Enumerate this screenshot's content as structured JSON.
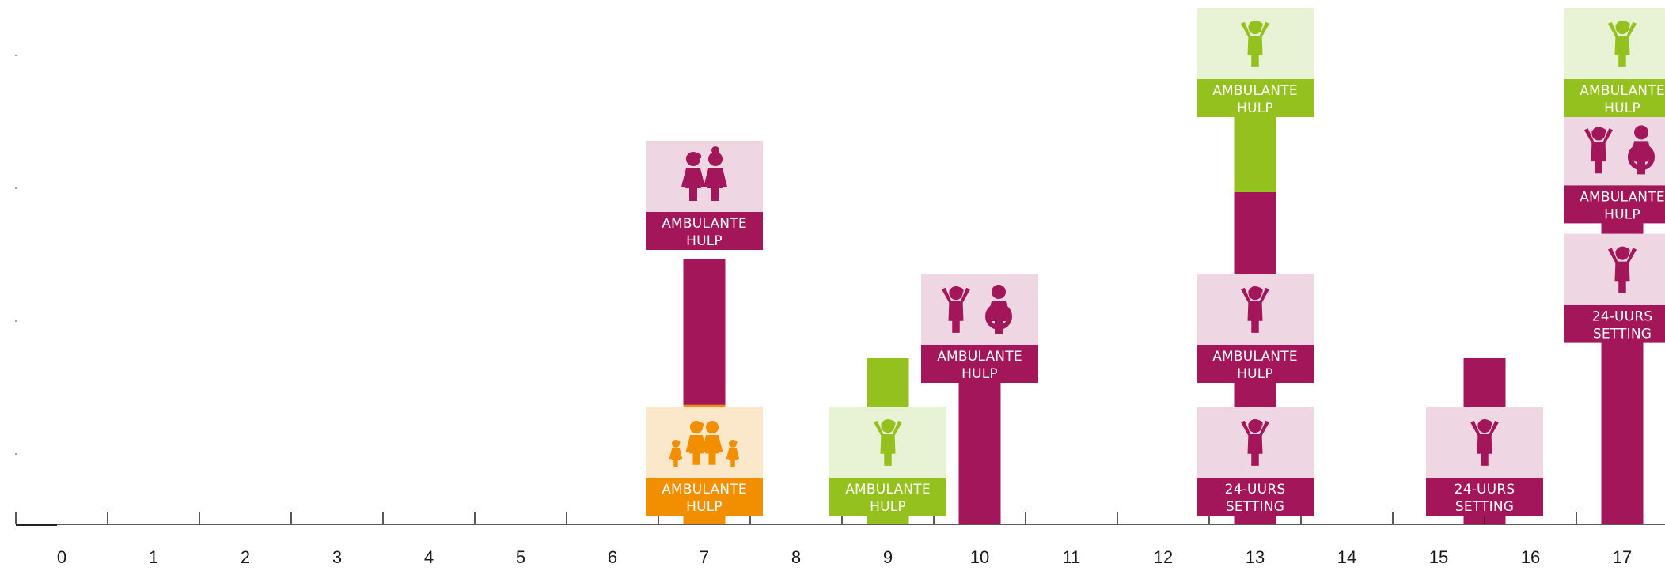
{
  "chart_data": {
    "type": "bar",
    "title": "",
    "xlabel": "",
    "ylabel": "",
    "x": [
      "0",
      "1",
      "2",
      "3",
      "4",
      "5",
      "6",
      "7",
      "8",
      "9",
      "10",
      "11",
      "12",
      "13",
      "14",
      "15",
      "16",
      "17"
    ],
    "ylim": [
      0,
      4
    ],
    "grid": false,
    "colors": {
      "orange": "#f18f00",
      "green": "#95c11f",
      "magenta": "#a3175a",
      "orange_light": "#fbe8cb",
      "green_light": "#e8f3d5",
      "magenta_light": "#eed6e3"
    },
    "segments": [
      {
        "x": "7",
        "start": 0,
        "end": 0.9,
        "color": "orange"
      },
      {
        "x": "7",
        "start": 0.9,
        "end": 2.0,
        "color": "magenta"
      },
      {
        "x": "9",
        "start": 0,
        "end": 1.25,
        "color": "green"
      },
      {
        "x": "10",
        "start": 0,
        "end": 1.65,
        "color": "magenta"
      },
      {
        "x": "13",
        "start": 0,
        "end": 2.5,
        "color": "magenta"
      },
      {
        "x": "13",
        "start": 2.5,
        "end": 3.75,
        "color": "green"
      },
      {
        "x": "15.5",
        "start": 0,
        "end": 1.25,
        "color": "magenta"
      },
      {
        "x": "17",
        "start": 0,
        "end": 2.5,
        "color": "magenta"
      },
      {
        "x": "17",
        "start": 2.5,
        "end": 3.75,
        "color": "green"
      }
    ],
    "annotations": [
      {
        "x": "7",
        "level": 0,
        "color": "orange",
        "icon": "family-icon",
        "label": [
          "AMBULANTE",
          "HULP"
        ]
      },
      {
        "x": "7",
        "level": 2,
        "color": "magenta",
        "icon": "parents-icon",
        "label": [
          "AMBULANTE",
          "HULP"
        ]
      },
      {
        "x": "9",
        "level": 0,
        "color": "green",
        "icon": "child-icon",
        "label": [
          "AMBULANTE",
          "HULP"
        ]
      },
      {
        "x": "10",
        "level": 1,
        "color": "magenta",
        "icon": "child-and-parent-icon",
        "label": [
          "AMBULANTE",
          "HULP"
        ]
      },
      {
        "x": "13",
        "level": 0,
        "color": "magenta",
        "icon": "child-icon",
        "label": [
          "24-UURS",
          "SETTING"
        ]
      },
      {
        "x": "13",
        "level": 1,
        "color": "magenta",
        "icon": "child-icon",
        "label": [
          "AMBULANTE",
          "HULP"
        ]
      },
      {
        "x": "13",
        "level": 3,
        "color": "green",
        "icon": "child-icon",
        "label": [
          "AMBULANTE",
          "HULP"
        ]
      },
      {
        "x": "15.5",
        "level": 0,
        "color": "magenta",
        "icon": "child-icon",
        "label": [
          "24-UURS",
          "SETTING"
        ]
      },
      {
        "x": "17",
        "level": 1.3,
        "color": "magenta",
        "icon": "child-icon",
        "label": [
          "24-UURS",
          "SETTING"
        ]
      },
      {
        "x": "17",
        "level": 2.2,
        "color": "magenta",
        "icon": "child-and-parent-icon",
        "label": [
          "AMBULANTE",
          "HULP"
        ]
      },
      {
        "x": "17",
        "level": 3,
        "color": "green",
        "icon": "child-icon",
        "label": [
          "AMBULANTE",
          "HULP"
        ]
      }
    ]
  }
}
